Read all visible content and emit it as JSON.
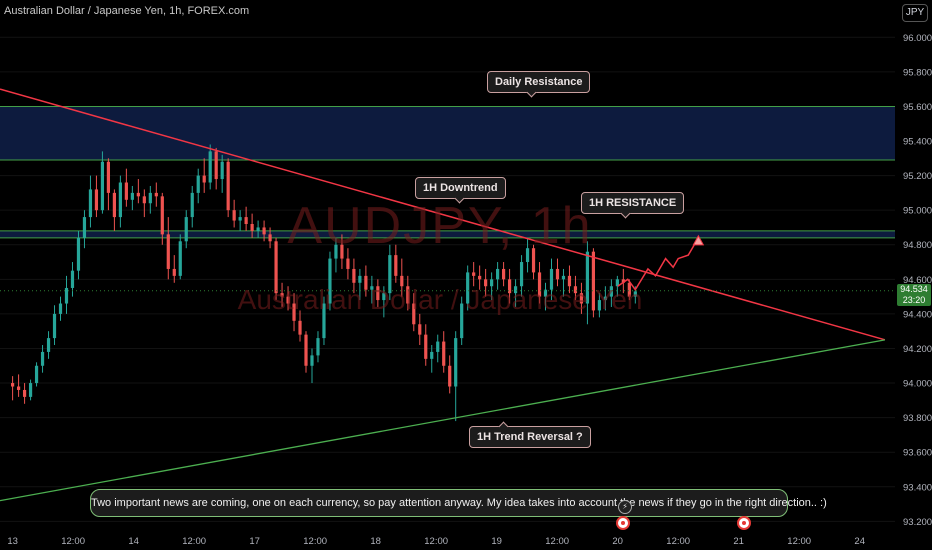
{
  "header": {
    "title": "Australian Dollar / Japanese Yen, 1h, FOREX.com",
    "currency": "JPY"
  },
  "watermark": {
    "symbol": "AUDJPY, 1h",
    "name": "Australian Dollar / Japanese Yen"
  },
  "annotations": {
    "daily_resistance": "Daily Resistance",
    "downtrend": "1H Downtrend",
    "resistance_1h": "1H RESISTANCE",
    "trend_reversal": "1H Trend Reversal ?",
    "note": "Two important news are coming, one on each currency, so pay attention anyway. My idea takes into account the news if they go in the right direction.. :)"
  },
  "price_tag": {
    "price": "94.534",
    "countdown": "23:20"
  },
  "colors": {
    "up": "#26a69a",
    "down": "#ef5350",
    "downtrend_line": "#f23645",
    "uptrend_line": "#4caf50",
    "zone_fill": "#0d1b3e",
    "zone_border": "#43a047",
    "projection": "#f23645"
  },
  "chart_data": {
    "type": "candlestick",
    "y_axis_ticks": [
      93.2,
      93.4,
      93.6,
      93.8,
      94.0,
      94.2,
      94.4,
      94.6,
      94.8,
      95.0,
      95.2,
      95.4,
      95.6,
      95.8,
      96.0
    ],
    "y_axis_labels": [
      "93.200",
      "93.400",
      "93.600",
      "93.800",
      "94.000",
      "94.200",
      "94.400",
      "94.600",
      "94.800",
      "95.000",
      "95.200",
      "95.400",
      "95.600",
      "95.800",
      "96.000"
    ],
    "ylim": [
      93.15,
      96.1
    ],
    "x_axis_labels": [
      "13",
      "12:00",
      "14",
      "12:00",
      "17",
      "12:00",
      "18",
      "12:00",
      "19",
      "12:00",
      "20",
      "12:00",
      "21",
      "12:00",
      "24"
    ],
    "x_axis_positions": [
      0,
      24,
      48,
      72,
      96,
      120,
      144,
      168,
      192,
      216,
      240,
      264,
      288,
      312,
      336
    ],
    "xlim": [
      -5,
      350
    ],
    "last_price": 94.534,
    "zones": [
      {
        "name": "Daily Resistance",
        "low": 95.29,
        "high": 95.6
      },
      {
        "name": "1H RESISTANCE",
        "low": 94.84,
        "high": 94.88
      }
    ],
    "trendlines": [
      {
        "name": "1H Downtrend",
        "x1": -5,
        "y1": 95.7,
        "x2": 346,
        "y2": 94.25
      },
      {
        "name": "1H Trend Reversal ?",
        "x1": -5,
        "y1": 93.32,
        "x2": 346,
        "y2": 94.25
      }
    ],
    "projection": {
      "x": [
        240,
        244,
        247,
        252,
        255,
        259,
        262,
        264,
        268,
        272
      ],
      "y": [
        94.56,
        94.6,
        94.54,
        94.66,
        94.62,
        94.72,
        94.67,
        94.72,
        94.74,
        94.84
      ]
    },
    "candles": [
      [
        94.0,
        94.04,
        93.9,
        93.98
      ],
      [
        93.98,
        94.05,
        93.92,
        93.96
      ],
      [
        93.96,
        94.0,
        93.88,
        93.92
      ],
      [
        93.92,
        94.02,
        93.9,
        94.0
      ],
      [
        94.0,
        94.12,
        93.98,
        94.1
      ],
      [
        94.1,
        94.22,
        94.06,
        94.18
      ],
      [
        94.18,
        94.3,
        94.14,
        94.26
      ],
      [
        94.26,
        94.45,
        94.22,
        94.4
      ],
      [
        94.4,
        94.5,
        94.36,
        94.46
      ],
      [
        94.46,
        94.62,
        94.4,
        94.55
      ],
      [
        94.55,
        94.7,
        94.5,
        94.65
      ],
      [
        94.65,
        94.88,
        94.6,
        94.84
      ],
      [
        94.84,
        95.0,
        94.78,
        94.96
      ],
      [
        94.96,
        95.2,
        94.9,
        95.12
      ],
      [
        95.12,
        95.2,
        94.96,
        95.0
      ],
      [
        95.0,
        95.34,
        94.98,
        95.28
      ],
      [
        95.28,
        95.3,
        95.0,
        95.1
      ],
      [
        95.1,
        95.12,
        94.88,
        94.96
      ],
      [
        94.96,
        95.2,
        94.9,
        95.16
      ],
      [
        95.16,
        95.24,
        95.02,
        95.06
      ],
      [
        95.06,
        95.14,
        95.0,
        95.1
      ],
      [
        95.1,
        95.18,
        95.04,
        95.08
      ],
      [
        95.08,
        95.12,
        94.96,
        95.04
      ],
      [
        95.04,
        95.14,
        94.98,
        95.1
      ],
      [
        95.1,
        95.16,
        95.02,
        95.08
      ],
      [
        95.08,
        95.1,
        94.8,
        94.86
      ],
      [
        94.86,
        94.96,
        94.6,
        94.66
      ],
      [
        94.66,
        94.74,
        94.58,
        94.62
      ],
      [
        94.62,
        94.86,
        94.6,
        94.82
      ],
      [
        94.82,
        95.0,
        94.78,
        94.96
      ],
      [
        94.96,
        95.14,
        94.9,
        95.1
      ],
      [
        95.1,
        95.24,
        95.04,
        95.2
      ],
      [
        95.2,
        95.3,
        95.1,
        95.16
      ],
      [
        95.16,
        95.38,
        95.12,
        95.34
      ],
      [
        95.34,
        95.36,
        95.12,
        95.18
      ],
      [
        95.18,
        95.32,
        95.1,
        95.28
      ],
      [
        95.28,
        95.3,
        94.96,
        95.0
      ],
      [
        95.0,
        95.06,
        94.9,
        94.94
      ],
      [
        94.94,
        95.0,
        94.88,
        94.96
      ],
      [
        94.96,
        95.02,
        94.88,
        94.92
      ],
      [
        94.92,
        94.98,
        94.84,
        94.88
      ],
      [
        94.88,
        94.94,
        94.84,
        94.9
      ],
      [
        94.9,
        94.94,
        94.82,
        94.86
      ],
      [
        94.86,
        94.9,
        94.78,
        94.82
      ],
      [
        94.82,
        94.84,
        94.48,
        94.52
      ],
      [
        94.52,
        94.58,
        94.44,
        94.5
      ],
      [
        94.5,
        94.56,
        94.42,
        94.46
      ],
      [
        94.46,
        94.52,
        94.3,
        94.36
      ],
      [
        94.36,
        94.42,
        94.24,
        94.28
      ],
      [
        94.28,
        94.3,
        94.06,
        94.1
      ],
      [
        94.1,
        94.2,
        94.0,
        94.16
      ],
      [
        94.16,
        94.3,
        94.12,
        94.26
      ],
      [
        94.26,
        94.5,
        94.22,
        94.46
      ],
      [
        94.46,
        94.76,
        94.42,
        94.72
      ],
      [
        94.72,
        94.84,
        94.64,
        94.8
      ],
      [
        94.8,
        94.86,
        94.66,
        94.72
      ],
      [
        94.72,
        94.78,
        94.6,
        94.66
      ],
      [
        94.66,
        94.72,
        94.52,
        94.58
      ],
      [
        94.58,
        94.66,
        94.48,
        94.62
      ],
      [
        94.62,
        94.68,
        94.5,
        94.54
      ],
      [
        94.54,
        94.62,
        94.46,
        94.56
      ],
      [
        94.56,
        94.6,
        94.44,
        94.48
      ],
      [
        94.48,
        94.56,
        94.38,
        94.52
      ],
      [
        94.52,
        94.8,
        94.48,
        94.74
      ],
      [
        94.74,
        94.8,
        94.58,
        94.62
      ],
      [
        94.62,
        94.72,
        94.5,
        94.56
      ],
      [
        94.56,
        94.62,
        94.42,
        94.46
      ],
      [
        94.46,
        94.52,
        94.3,
        94.34
      ],
      [
        94.34,
        94.4,
        94.22,
        94.28
      ],
      [
        94.28,
        94.34,
        94.1,
        94.14
      ],
      [
        94.14,
        94.22,
        94.06,
        94.18
      ],
      [
        94.18,
        94.28,
        94.12,
        94.24
      ],
      [
        94.24,
        94.3,
        94.06,
        94.1
      ],
      [
        94.1,
        94.16,
        93.94,
        93.98
      ],
      [
        93.98,
        94.3,
        93.78,
        94.26
      ],
      [
        94.26,
        94.5,
        94.22,
        94.46
      ],
      [
        94.46,
        94.68,
        94.42,
        94.64
      ],
      [
        94.64,
        94.7,
        94.56,
        94.62
      ],
      [
        94.62,
        94.68,
        94.54,
        94.6
      ],
      [
        94.6,
        94.66,
        94.5,
        94.56
      ],
      [
        94.56,
        94.64,
        94.48,
        94.6
      ],
      [
        94.6,
        94.7,
        94.54,
        94.66
      ],
      [
        94.66,
        94.7,
        94.56,
        94.6
      ],
      [
        94.6,
        94.66,
        94.46,
        94.52
      ],
      [
        94.52,
        94.6,
        94.44,
        94.56
      ],
      [
        94.56,
        94.74,
        94.5,
        94.7
      ],
      [
        94.7,
        94.84,
        94.64,
        94.78
      ],
      [
        94.78,
        94.8,
        94.6,
        94.64
      ],
      [
        94.64,
        94.7,
        94.46,
        94.5
      ],
      [
        94.5,
        94.58,
        94.42,
        94.54
      ],
      [
        94.54,
        94.72,
        94.48,
        94.66
      ],
      [
        94.66,
        94.72,
        94.56,
        94.6
      ],
      [
        94.6,
        94.66,
        94.5,
        94.62
      ],
      [
        94.62,
        94.68,
        94.52,
        94.56
      ],
      [
        94.56,
        94.62,
        94.48,
        94.52
      ],
      [
        94.52,
        94.58,
        94.4,
        94.46
      ],
      [
        94.46,
        94.82,
        94.34,
        94.76
      ],
      [
        94.76,
        94.78,
        94.38,
        94.42
      ],
      [
        94.42,
        94.52,
        94.38,
        94.48
      ],
      [
        94.48,
        94.56,
        94.42,
        94.5
      ],
      [
        94.5,
        94.6,
        94.44,
        94.56
      ],
      [
        94.56,
        94.62,
        94.5,
        94.6
      ],
      [
        94.6,
        94.66,
        94.52,
        94.58
      ],
      [
        94.58,
        94.6,
        94.48,
        94.5
      ],
      [
        94.5,
        94.56,
        94.46,
        94.53
      ]
    ],
    "candle_x_start": 0,
    "candle_x_step": 2.375
  }
}
